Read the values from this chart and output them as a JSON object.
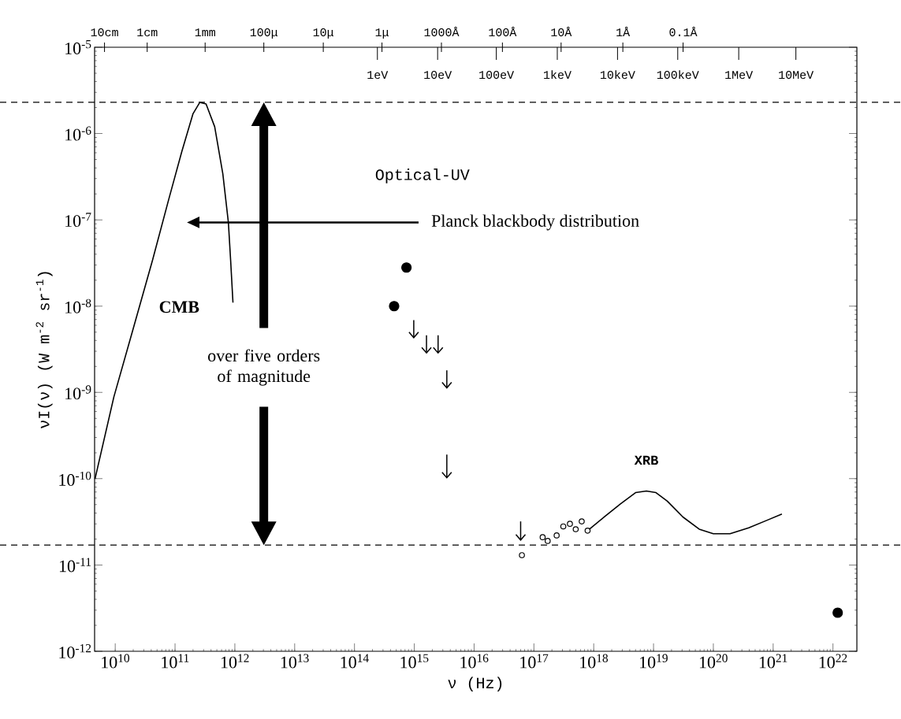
{
  "chart_data": {
    "type": "line",
    "log": "xy",
    "xlabel": "ν (Hz)",
    "ylabel": "νI(ν) (W m$^{-2}$ sr$^{-1}$)",
    "xlim": [
      4520000000.0,
      2.51e+22
    ],
    "ylim": [
      1e-12,
      1e-05
    ],
    "xticks": [
      {
        "value": 10000000000.0,
        "label": "10$^{10}$"
      },
      {
        "value": 100000000000.0,
        "label": "10$^{11}$"
      },
      {
        "value": 1000000000000.0,
        "label": "10$^{12}$"
      },
      {
        "value": 10000000000000.0,
        "label": "10$^{13}$"
      },
      {
        "value": 100000000000000.0,
        "label": "10$^{14}$"
      },
      {
        "value": 1000000000000000.0,
        "label": "10$^{15}$"
      },
      {
        "value": 1e+16,
        "label": "10$^{16}$"
      },
      {
        "value": 1e+17,
        "label": "10$^{17}$"
      },
      {
        "value": 1e+18,
        "label": "10$^{18}$"
      },
      {
        "value": 1e+19,
        "label": "10$^{19}$"
      },
      {
        "value": 1e+20,
        "label": "10$^{20}$"
      },
      {
        "value": 1e+21,
        "label": "10$^{21}$"
      },
      {
        "value": 1e+22,
        "label": "10$^{22}$"
      }
    ],
    "yticks": [
      {
        "value": 1e-12,
        "label": "10$^{-12}$"
      },
      {
        "value": 1e-11,
        "label": "10$^{-11}$"
      },
      {
        "value": 1e-10,
        "label": "10$^{-10}$"
      },
      {
        "value": 1e-09,
        "label": "10$^{-9}$"
      },
      {
        "value": 1e-08,
        "label": "10$^{-8}$"
      },
      {
        "value": 1e-07,
        "label": "10$^{-7}$"
      },
      {
        "value": 1e-06,
        "label": "10$^{-6}$"
      },
      {
        "value": 1e-05,
        "label": "10$^{-5}$"
      }
    ],
    "series": [
      {
        "name": "CMB",
        "color": "#000000",
        "x": [
          4600000000.0,
          9500000000.0,
          20000000000.0,
          42000000000.0,
          78000000000.0,
          130000000000.0,
          200000000000.0,
          260000000000.0,
          330000000000.0,
          460000000000.0,
          630000000000.0,
          780000000000.0,
          850000000000.0,
          930000000000.0
        ],
        "values": [
          1e-10,
          8.9e-10,
          5.5e-09,
          3.4e-08,
          1.7e-07,
          6.2e-07,
          1.7e-06,
          2.3e-06,
          2.2e-06,
          1.2e-06,
          3.4e-07,
          9.3e-08,
          3.4e-08,
          1.1e-08
        ]
      },
      {
        "name": "XRB",
        "color": "#000000",
        "x": [
          7.9e+17,
          1.5e+18,
          2.8e+18,
          5e+18,
          7.6e+18,
          1.1e+19,
          1.7e+19,
          3.1e+19,
          5.8e+19,
          1e+20,
          1.9e+20,
          3.9e+20,
          7.9e+20,
          1.4e+21
        ],
        "values": [
          2.5e-11,
          3.6e-11,
          5.1e-11,
          6.9e-11,
          7.2e-11,
          6.9e-11,
          5.5e-11,
          3.6e-11,
          2.6e-11,
          2.3e-11,
          2.3e-11,
          2.7e-11,
          3.3e-11,
          3.9e-11
        ]
      },
      {
        "type": "scatter",
        "marker": "circle",
        "color": "#000000",
        "x": [
          460000000000000.0,
          740000000000000.0,
          1.2e+22
        ],
        "values": [
          1e-08,
          2.8e-08,
          2.8e-12
        ]
      },
      {
        "type": "scatter",
        "marker": "circle",
        "color": "#000000",
        "x": [
          6.3e+16,
          1.4e+17,
          1.7e+17,
          2.4e+17,
          3.1e+17,
          4e+17,
          5e+17,
          6.3e+17,
          7.9e+17
        ],
        "values": [
          1.3e-11,
          2.1e-11,
          1.9e-11,
          2.2e-11,
          2.8e-11,
          3e-11,
          2.6e-11,
          3.2e-11,
          2.5e-11
        ]
      },
      {
        "type": "scatter",
        "color": "#000000",
        "x": [
          980000000000000.0,
          1600000000000000.0,
          2500000000000000.0,
          3500000000000000.0,
          3500000000000000.0,
          6e+16
        ],
        "values": [
          4.6e-09,
          3.1e-09,
          3.1e-09,
          1.2e-09,
          1.1e-10,
          2.1e-11
        ],
        "errors": [
          [
            4.2e-09,
            6.9e-09
          ],
          [
            2.8e-09,
            4.6e-09
          ],
          [
            2.8e-09,
            4.6e-09
          ],
          [
            1.1e-09,
            1.8e-09
          ],
          [
            1e-10,
            1.9e-10
          ],
          [
            1.9e-11,
            3.2e-11
          ]
        ]
      }
    ],
    "ref_lines": [
      {
        "axis": "y",
        "value": 2.3e-06,
        "line_style": "dashed"
      },
      {
        "axis": "y",
        "value": 1.7e-11,
        "line_style": "dashed"
      }
    ],
    "annotations": [
      "Optical-UV",
      "Planck blackbody distribution",
      "over five orders of magnitude",
      "10cm",
      "1cm",
      "1mm",
      "100μ",
      "10μ",
      "1μ",
      "1000Å",
      "100Å",
      "10Å",
      "1Å",
      "0.1Å",
      "1eV",
      "10eV",
      "100eV",
      "1keV",
      "10keV",
      "100keV",
      "1MeV",
      "10MeV"
    ],
    "grid": false
  }
}
